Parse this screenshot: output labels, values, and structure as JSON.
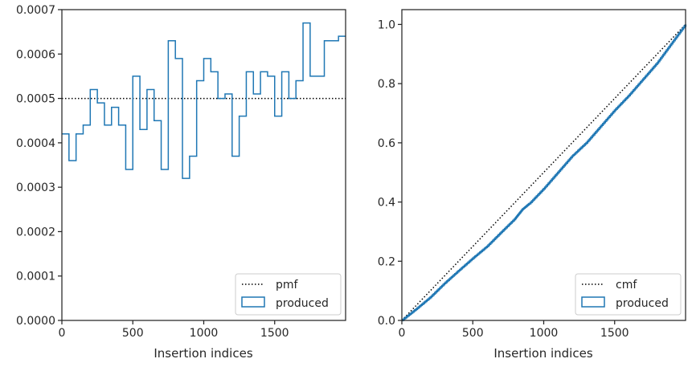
{
  "colors": {
    "produced": "#1f77b4",
    "reference": "#000000",
    "axes": "#262626"
  },
  "chart_data": [
    {
      "type": "histogram-step",
      "xlabel": "Insertion indices",
      "ylabel": "",
      "xlim": [
        0,
        2000
      ],
      "ylim": [
        0,
        0.0007
      ],
      "xticks": [
        0,
        500,
        1000,
        1500
      ],
      "xtick_labels": [
        "0",
        "500",
        "1000",
        "1500"
      ],
      "yticks": [
        0,
        0.0001,
        0.0002,
        0.0003,
        0.0004,
        0.0005,
        0.0006,
        0.0007
      ],
      "ytick_labels": [
        "0.0000",
        "0.0001",
        "0.0002",
        "0.0003",
        "0.0004",
        "0.0005",
        "0.0006",
        "0.0007"
      ],
      "grid": false,
      "legend_position": "lower right",
      "legend": [
        "pmf",
        "produced"
      ],
      "series": [
        {
          "name": "pmf",
          "style": "dotted",
          "x": [
            0,
            2000
          ],
          "y": [
            0.0005,
            0.0005
          ]
        },
        {
          "name": "produced",
          "style": "step",
          "bin_edges": [
            0,
            50,
            100,
            150,
            200,
            250,
            300,
            350,
            400,
            450,
            500,
            550,
            600,
            650,
            700,
            750,
            800,
            850,
            900,
            950,
            1000,
            1050,
            1100,
            1150,
            1200,
            1250,
            1300,
            1350,
            1400,
            1450,
            1500,
            1550,
            1600,
            1650,
            1700,
            1750,
            1800,
            1850,
            1900,
            1950,
            2000
          ],
          "values": [
            0.00042,
            0.00036,
            0.00042,
            0.00044,
            0.00052,
            0.00049,
            0.00044,
            0.00048,
            0.00044,
            0.00034,
            0.00055,
            0.00043,
            0.00052,
            0.00045,
            0.00034,
            0.00063,
            0.00059,
            0.00032,
            0.00037,
            0.00054,
            0.00059,
            0.00056,
            0.0005,
            0.00051,
            0.00037,
            0.00046,
            0.00056,
            0.00051,
            0.00056,
            0.00055,
            0.00046,
            0.00056,
            0.0005,
            0.00054,
            0.00067,
            0.00055,
            0.00055,
            0.00063,
            0.00063,
            0.00064
          ]
        }
      ]
    },
    {
      "type": "line",
      "xlabel": "Insertion indices",
      "ylabel": "",
      "xlim": [
        0,
        2000
      ],
      "ylim": [
        0,
        1.05
      ],
      "xticks": [
        0,
        500,
        1000,
        1500
      ],
      "xtick_labels": [
        "0",
        "500",
        "1000",
        "1500"
      ],
      "yticks": [
        0,
        0.2,
        0.4,
        0.6,
        0.8,
        1.0
      ],
      "ytick_labels": [
        "0.0",
        "0.2",
        "0.4",
        "0.6",
        "0.8",
        "1.0"
      ],
      "grid": false,
      "legend_position": "lower right",
      "legend": [
        "cmf",
        "produced"
      ],
      "series": [
        {
          "name": "cmf",
          "style": "dotted",
          "x": [
            0,
            2000
          ],
          "y": [
            0,
            1
          ]
        },
        {
          "name": "produced",
          "style": "step",
          "x": [
            0,
            100,
            200,
            300,
            400,
            500,
            600,
            700,
            800,
            850,
            900,
            1000,
            1100,
            1200,
            1300,
            1400,
            1500,
            1600,
            1700,
            1800,
            1900,
            2000
          ],
          "y": [
            0,
            0.038,
            0.078,
            0.125,
            0.168,
            0.21,
            0.25,
            0.298,
            0.345,
            0.375,
            0.395,
            0.445,
            0.5,
            0.555,
            0.6,
            0.655,
            0.71,
            0.76,
            0.815,
            0.87,
            0.935,
            1.0
          ]
        }
      ]
    }
  ]
}
